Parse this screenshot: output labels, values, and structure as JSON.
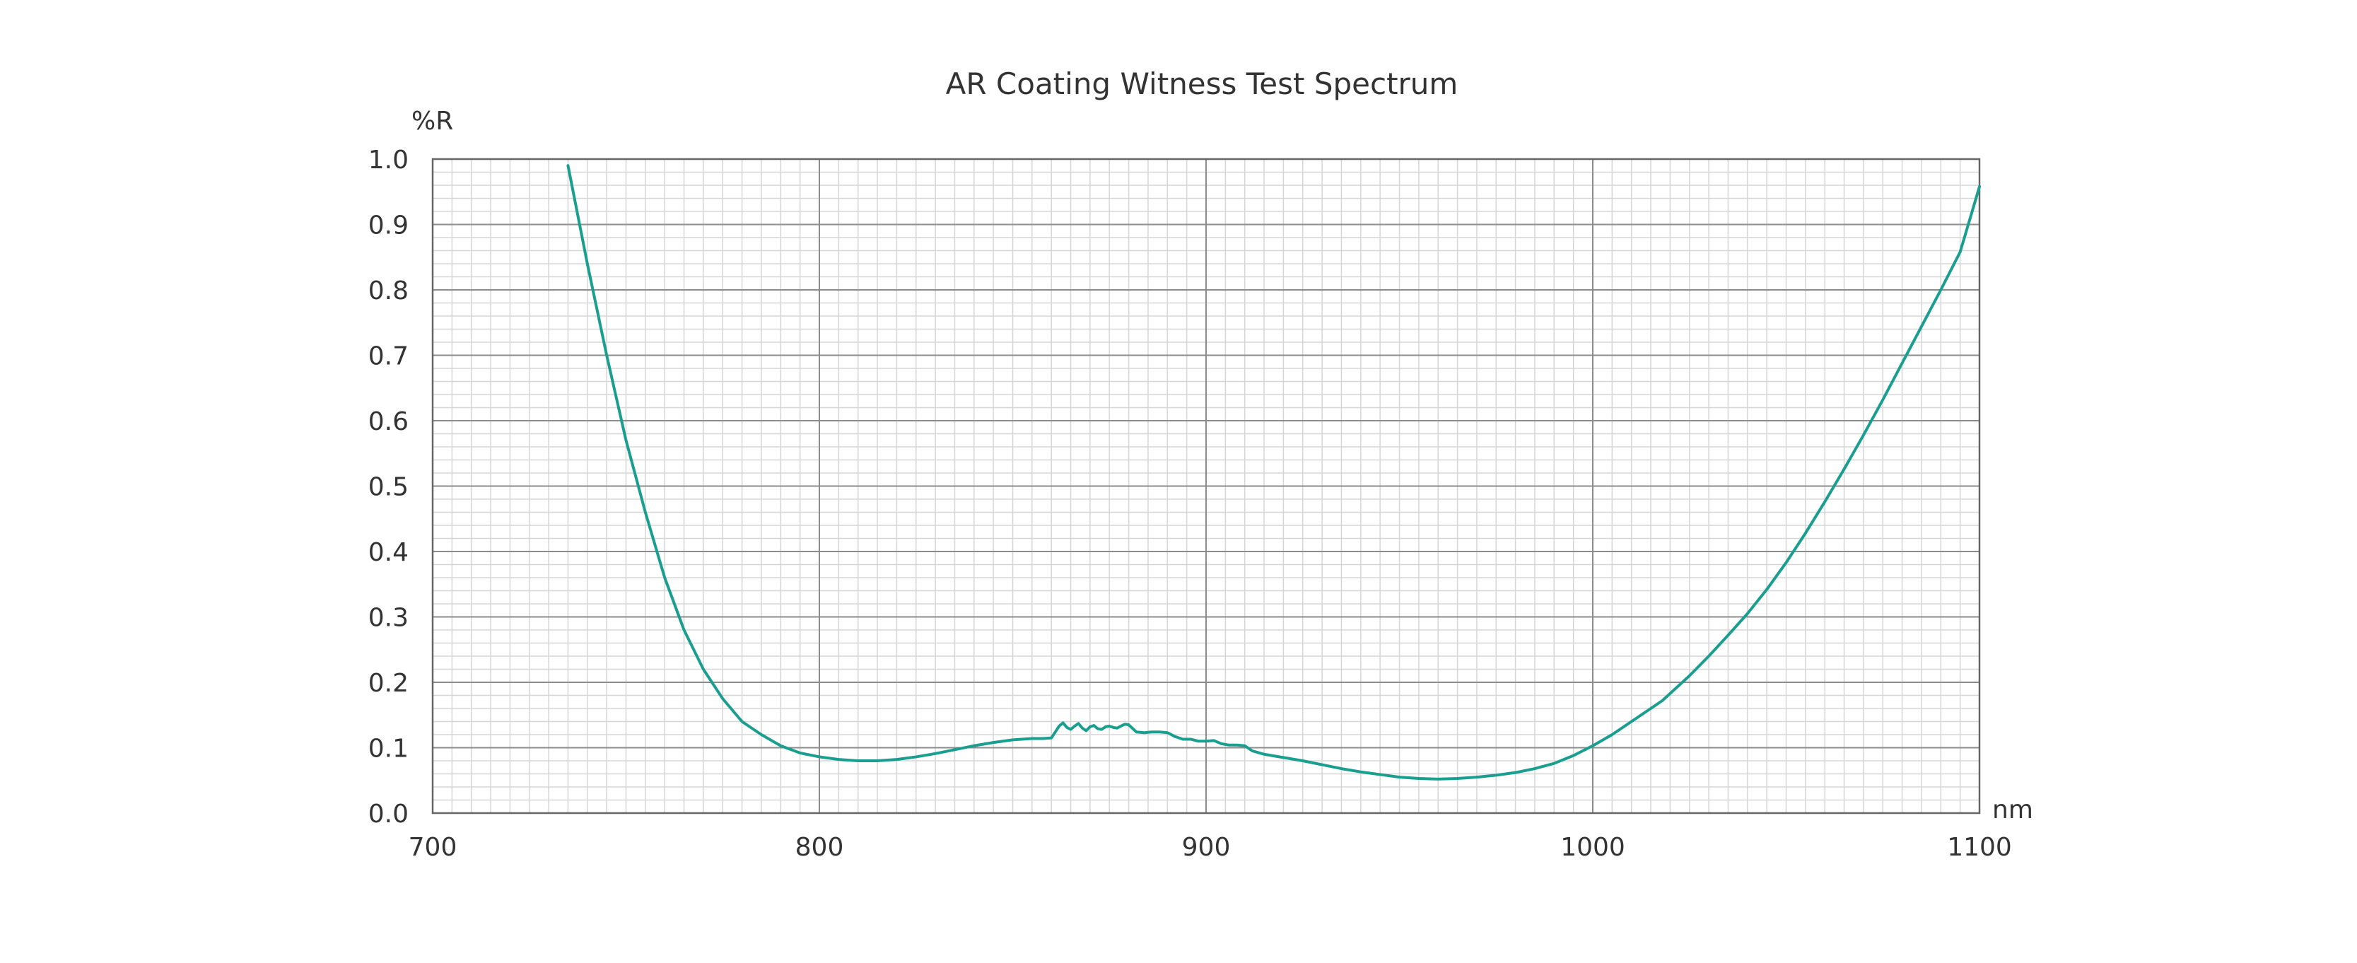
{
  "chart_data": {
    "type": "line",
    "title": "AR Coating Witness Test Spectrum",
    "xlabel": "nm",
    "ylabel": "%R",
    "xlim": [
      700,
      1100
    ],
    "ylim": [
      0.0,
      1.0
    ],
    "x_ticks": [
      700,
      800,
      900,
      1000,
      1100
    ],
    "x_tick_labels": [
      "700",
      "800",
      "900",
      "1000",
      "1100"
    ],
    "y_ticks": [
      0.0,
      0.1,
      0.2,
      0.3,
      0.4,
      0.5,
      0.6,
      0.7,
      0.8,
      0.9,
      1.0
    ],
    "y_tick_labels": [
      "0.0",
      "0.1",
      "0.2",
      "0.3",
      "0.4",
      "0.5",
      "0.6",
      "0.7",
      "0.8",
      "0.9",
      "1.0"
    ],
    "grid": true,
    "minor_grid": {
      "x_step": 5,
      "y_step": 0.02
    },
    "colors": {
      "line": "#1a9e8f",
      "text": "#333333"
    },
    "series": [
      {
        "x": [
          735,
          740,
          745,
          750,
          755,
          760,
          765,
          770,
          775,
          780,
          785,
          790,
          795,
          800,
          805,
          810,
          815,
          820,
          825,
          830,
          835,
          840,
          845,
          850,
          855,
          858,
          860,
          861,
          862,
          863,
          864,
          865,
          866,
          867,
          868,
          869,
          870,
          871,
          872,
          873,
          874,
          875,
          876,
          877,
          878,
          879,
          880,
          882,
          884,
          886,
          888,
          890,
          892,
          894,
          896,
          898,
          900,
          902,
          904,
          906,
          908,
          910,
          912,
          915,
          920,
          925,
          930,
          935,
          940,
          945,
          950,
          955,
          960,
          965,
          970,
          975,
          980,
          985,
          990,
          995,
          1000,
          1005,
          1010,
          1018,
          1025,
          1030,
          1035,
          1040,
          1045,
          1050,
          1055,
          1060,
          1065,
          1070,
          1075,
          1080,
          1085,
          1090,
          1095,
          1100
        ],
        "y": [
          0.99,
          0.84,
          0.7,
          0.57,
          0.46,
          0.36,
          0.28,
          0.22,
          0.175,
          0.14,
          0.12,
          0.103,
          0.092,
          0.086,
          0.082,
          0.08,
          0.08,
          0.082,
          0.086,
          0.091,
          0.097,
          0.103,
          0.108,
          0.112,
          0.114,
          0.114,
          0.115,
          0.124,
          0.133,
          0.138,
          0.131,
          0.128,
          0.133,
          0.137,
          0.13,
          0.126,
          0.132,
          0.134,
          0.129,
          0.128,
          0.132,
          0.133,
          0.131,
          0.13,
          0.133,
          0.136,
          0.135,
          0.124,
          0.123,
          0.124,
          0.124,
          0.123,
          0.117,
          0.113,
          0.113,
          0.11,
          0.11,
          0.111,
          0.106,
          0.104,
          0.104,
          0.103,
          0.095,
          0.09,
          0.085,
          0.08,
          0.074,
          0.068,
          0.063,
          0.059,
          0.055,
          0.053,
          0.052,
          0.053,
          0.055,
          0.058,
          0.062,
          0.068,
          0.076,
          0.088,
          0.103,
          0.12,
          0.14,
          0.172,
          0.21,
          0.24,
          0.272,
          0.305,
          0.342,
          0.383,
          0.428,
          0.476,
          0.526,
          0.578,
          0.632,
          0.688,
          0.744,
          0.8,
          0.858,
          0.958
        ]
      }
    ]
  }
}
